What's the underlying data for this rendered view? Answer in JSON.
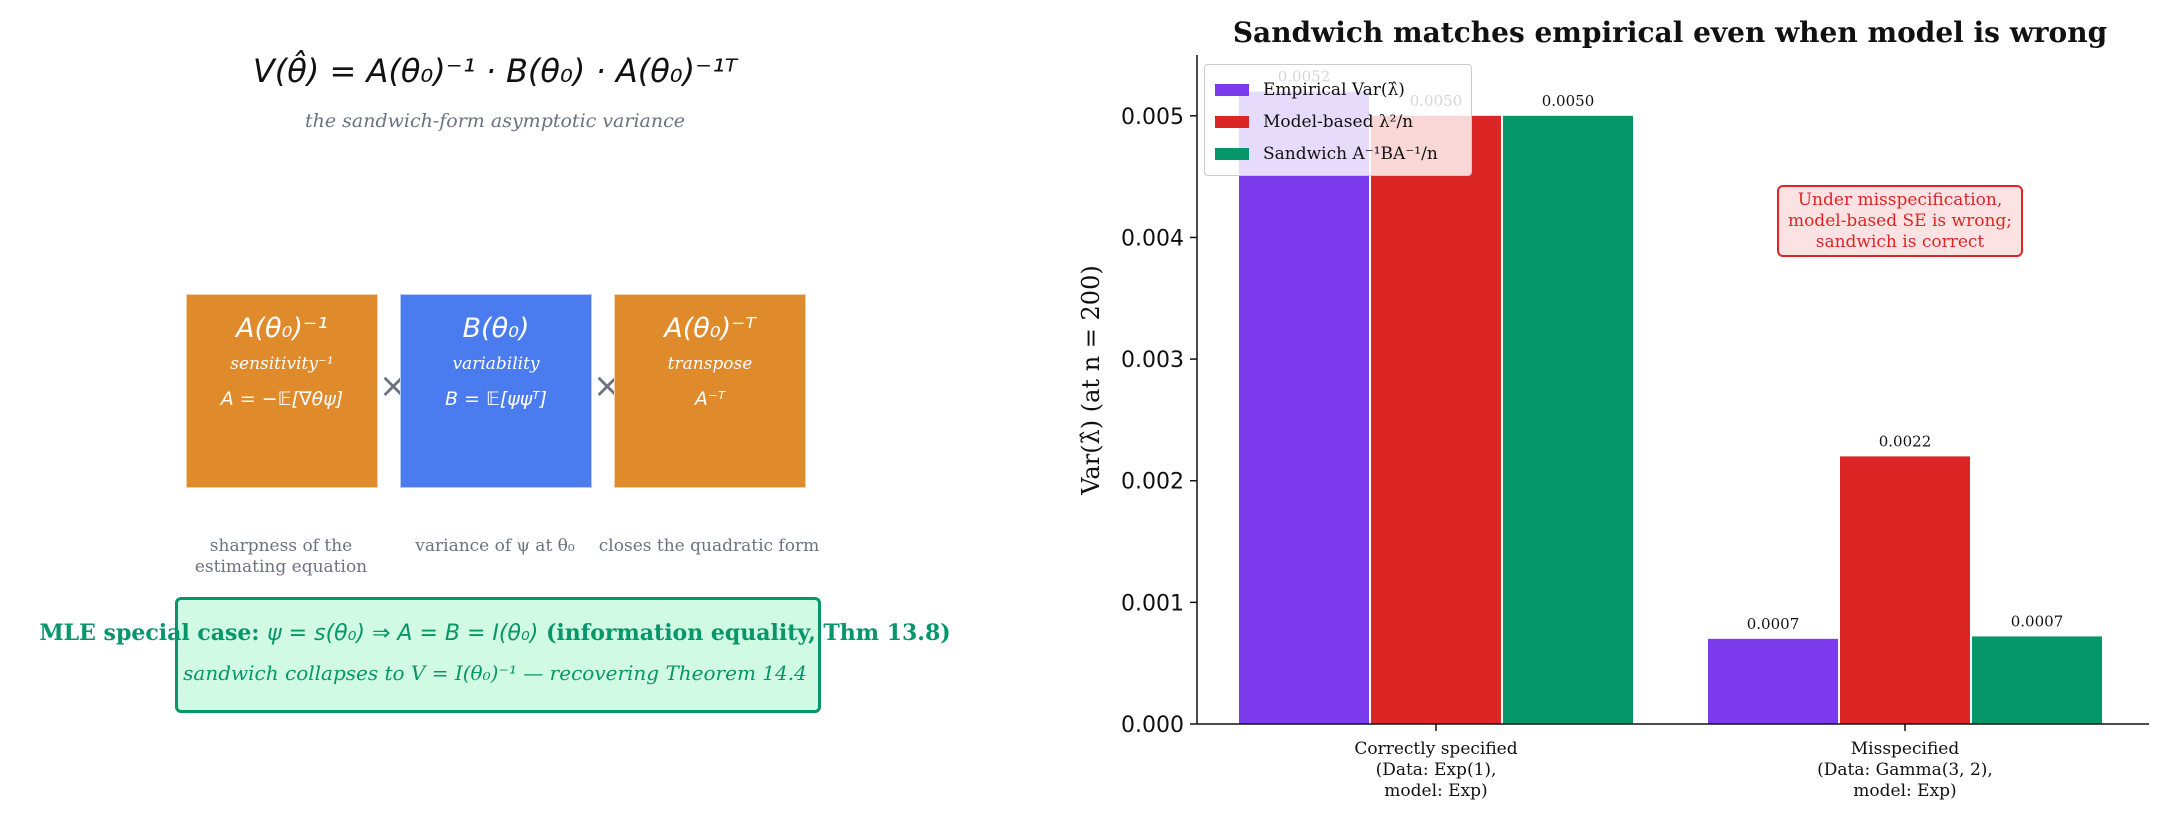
{
  "left_panel": {
    "formula_main": "V(θ̂) = A(θ₀)⁻¹ · B(θ₀) · A(θ₀)⁻¹ᵀ",
    "formula_sub": "the sandwich-form asymptotic variance",
    "cards": [
      {
        "title": "A(θ₀)⁻¹",
        "subtitle": "sensitivity⁻¹",
        "formula": "A = −𝔼[∇θψ]",
        "color": "#df8a2b",
        "caption": "sharpness of the estimating equation"
      },
      {
        "title": "B(θ₀)",
        "subtitle": "variability",
        "formula": "B = 𝔼[ψψᵀ]",
        "color": "#4a7cf0",
        "caption": "variance of ψ at θ₀"
      },
      {
        "title": "A(θ₀)⁻ᵀ",
        "subtitle": "transpose",
        "formula": "A⁻ᵀ",
        "color": "#df8a2b",
        "caption": "closes the quadratic form"
      }
    ],
    "times_symbol": "×",
    "mle": {
      "title_prefix": "MLE special case: ",
      "title_math": "ψ = s(θ₀)  ⇒  A = B = I(θ₀)",
      "title_suffix": " (information equality, Thm 13.8)",
      "subtitle": "sandwich collapses to V = I(θ₀)⁻¹ — recovering Theorem 14.4"
    }
  },
  "chart_data": {
    "type": "bar",
    "title": "Sandwich matches empirical even when model is wrong",
    "ylabel": "Var(λ̂)  (at n = 200)",
    "xlabel": "",
    "ylim": [
      0,
      0.0055
    ],
    "yticks": [
      "0.000",
      "0.001",
      "0.002",
      "0.003",
      "0.004",
      "0.005"
    ],
    "categories": [
      [
        "Correctly specified",
        "(Data: Exp(1),",
        "model: Exp)"
      ],
      [
        "Misspecified",
        "(Data: Gamma(3, 2),",
        "model: Exp)"
      ]
    ],
    "series": [
      {
        "name": "Empirical Var(λ̂)",
        "color": "#7c3aed",
        "values": [
          0.0052,
          0.0007
        ],
        "labels": [
          "0.0052",
          "0.0007"
        ]
      },
      {
        "name": "Model-based λ²/n",
        "color": "#dc2626",
        "values": [
          0.005,
          0.0022
        ],
        "labels": [
          "0.0050",
          "0.0022"
        ]
      },
      {
        "name": "Sandwich A⁻¹BA⁻¹/n",
        "color": "#059669",
        "values": [
          0.005,
          0.00072
        ],
        "labels": [
          "0.0050",
          "0.0007"
        ]
      }
    ],
    "legend_position": "top-left",
    "grid": false,
    "annotation": [
      "Under misspecification,",
      "model-based SE is wrong;",
      "sandwich is correct"
    ]
  }
}
